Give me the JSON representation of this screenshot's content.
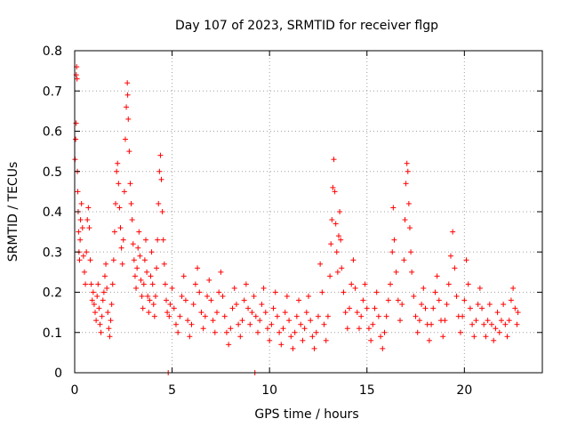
{
  "chart_data": {
    "type": "scatter",
    "title": "Day 107 of 2023, SRMTID for receiver flgp",
    "xlabel": "GPS time / hours",
    "ylabel": "SRMTID / TECUs",
    "xlim": [
      0,
      24
    ],
    "ylim": [
      0,
      0.8
    ],
    "xticks": [
      0,
      5,
      10,
      15,
      20
    ],
    "xtick_labels": [
      "0",
      "5",
      "10",
      "15",
      "20"
    ],
    "yticks": [
      0,
      0.1,
      0.2,
      0.3,
      0.4,
      0.5,
      0.6,
      0.7,
      0.8
    ],
    "ytick_labels": [
      "0",
      "0.1",
      "0.2",
      "0.3",
      "0.4",
      "0.5",
      "0.6",
      "0.7",
      "0.8"
    ],
    "grid": true,
    "marker": "+",
    "color": "#ff0000",
    "series": [
      {
        "name": "flgp",
        "points": [
          [
            0.02,
            0.53
          ],
          [
            0.05,
            0.58
          ],
          [
            0.07,
            0.62
          ],
          [
            0.08,
            0.74
          ],
          [
            0.1,
            0.76
          ],
          [
            0.12,
            0.73
          ],
          [
            0.14,
            0.5
          ],
          [
            0.16,
            0.45
          ],
          [
            0.18,
            0.4
          ],
          [
            0.2,
            0.35
          ],
          [
            0.22,
            0.3
          ],
          [
            0.25,
            0.28
          ],
          [
            0.28,
            0.33
          ],
          [
            0.3,
            0.38
          ],
          [
            0.35,
            0.42
          ],
          [
            0.4,
            0.36
          ],
          [
            0.45,
            0.29
          ],
          [
            0.5,
            0.25
          ],
          [
            0.55,
            0.22
          ],
          [
            0.6,
            0.3
          ],
          [
            0.65,
            0.38
          ],
          [
            0.7,
            0.41
          ],
          [
            0.75,
            0.36
          ],
          [
            0.8,
            0.28
          ],
          [
            0.85,
            0.22
          ],
          [
            0.9,
            0.18
          ],
          [
            0.95,
            0.2
          ],
          [
            1.0,
            0.17
          ],
          [
            1.05,
            0.15
          ],
          [
            1.1,
            0.13
          ],
          [
            1.15,
            0.19
          ],
          [
            1.2,
            0.22
          ],
          [
            1.25,
            0.16
          ],
          [
            1.3,
            0.12
          ],
          [
            1.35,
            0.1
          ],
          [
            1.4,
            0.14
          ],
          [
            1.45,
            0.18
          ],
          [
            1.5,
            0.2
          ],
          [
            1.55,
            0.24
          ],
          [
            1.6,
            0.27
          ],
          [
            1.65,
            0.21
          ],
          [
            1.7,
            0.15
          ],
          [
            1.75,
            0.11
          ],
          [
            1.8,
            0.09
          ],
          [
            1.85,
            0.13
          ],
          [
            1.9,
            0.17
          ],
          [
            1.95,
            0.22
          ],
          [
            2.0,
            0.28
          ],
          [
            2.05,
            0.35
          ],
          [
            2.1,
            0.42
          ],
          [
            2.15,
            0.5
          ],
          [
            2.2,
            0.52
          ],
          [
            2.25,
            0.47
          ],
          [
            2.3,
            0.41
          ],
          [
            2.35,
            0.36
          ],
          [
            2.4,
            0.31
          ],
          [
            2.45,
            0.27
          ],
          [
            2.5,
            0.33
          ],
          [
            2.55,
            0.45
          ],
          [
            2.6,
            0.58
          ],
          [
            2.65,
            0.66
          ],
          [
            2.7,
            0.72
          ],
          [
            2.72,
            0.69
          ],
          [
            2.75,
            0.63
          ],
          [
            2.8,
            0.55
          ],
          [
            2.85,
            0.47
          ],
          [
            2.9,
            0.42
          ],
          [
            2.95,
            0.38
          ],
          [
            3.0,
            0.32
          ],
          [
            3.05,
            0.28
          ],
          [
            3.1,
            0.24
          ],
          [
            3.15,
            0.21
          ],
          [
            3.2,
            0.26
          ],
          [
            3.25,
            0.31
          ],
          [
            3.3,
            0.35
          ],
          [
            3.35,
            0.29
          ],
          [
            3.4,
            0.23
          ],
          [
            3.45,
            0.19
          ],
          [
            3.5,
            0.16
          ],
          [
            3.55,
            0.22
          ],
          [
            3.6,
            0.28
          ],
          [
            3.65,
            0.33
          ],
          [
            3.7,
            0.25
          ],
          [
            3.75,
            0.19
          ],
          [
            3.8,
            0.15
          ],
          [
            3.85,
            0.18
          ],
          [
            3.9,
            0.24
          ],
          [
            3.95,
            0.3
          ],
          [
            4.0,
            0.22
          ],
          [
            4.05,
            0.17
          ],
          [
            4.1,
            0.14
          ],
          [
            4.15,
            0.19
          ],
          [
            4.2,
            0.26
          ],
          [
            4.25,
            0.33
          ],
          [
            4.3,
            0.42
          ],
          [
            4.35,
            0.5
          ],
          [
            4.4,
            0.54
          ],
          [
            4.45,
            0.48
          ],
          [
            4.5,
            0.4
          ],
          [
            4.55,
            0.33
          ],
          [
            4.6,
            0.27
          ],
          [
            4.65,
            0.22
          ],
          [
            4.7,
            0.18
          ],
          [
            4.75,
            0.15
          ],
          [
            4.8,
            0.0
          ],
          [
            4.85,
            0.14
          ],
          [
            4.9,
            0.17
          ],
          [
            5.0,
            0.21
          ],
          [
            5.1,
            0.16
          ],
          [
            5.2,
            0.12
          ],
          [
            5.3,
            0.1
          ],
          [
            5.4,
            0.14
          ],
          [
            5.5,
            0.19
          ],
          [
            5.6,
            0.24
          ],
          [
            5.7,
            0.18
          ],
          [
            5.8,
            0.13
          ],
          [
            5.9,
            0.09
          ],
          [
            6.0,
            0.12
          ],
          [
            6.1,
            0.17
          ],
          [
            6.2,
            0.22
          ],
          [
            6.3,
            0.26
          ],
          [
            6.4,
            0.2
          ],
          [
            6.5,
            0.15
          ],
          [
            6.6,
            0.11
          ],
          [
            6.7,
            0.14
          ],
          [
            6.8,
            0.19
          ],
          [
            6.9,
            0.23
          ],
          [
            7.0,
            0.18
          ],
          [
            7.1,
            0.13
          ],
          [
            7.2,
            0.1
          ],
          [
            7.3,
            0.15
          ],
          [
            7.4,
            0.2
          ],
          [
            7.5,
            0.25
          ],
          [
            7.6,
            0.19
          ],
          [
            7.7,
            0.14
          ],
          [
            7.8,
            0.1
          ],
          [
            7.9,
            0.07
          ],
          [
            8.0,
            0.11
          ],
          [
            8.1,
            0.16
          ],
          [
            8.2,
            0.21
          ],
          [
            8.3,
            0.17
          ],
          [
            8.4,
            0.12
          ],
          [
            8.5,
            0.09
          ],
          [
            8.6,
            0.13
          ],
          [
            8.7,
            0.18
          ],
          [
            8.8,
            0.22
          ],
          [
            8.9,
            0.16
          ],
          [
            9.0,
            0.12
          ],
          [
            9.1,
            0.15
          ],
          [
            9.2,
            0.19
          ],
          [
            9.25,
            0.0
          ],
          [
            9.3,
            0.14
          ],
          [
            9.4,
            0.1
          ],
          [
            9.5,
            0.13
          ],
          [
            9.6,
            0.17
          ],
          [
            9.7,
            0.21
          ],
          [
            9.8,
            0.15
          ],
          [
            9.9,
            0.11
          ],
          [
            10.0,
            0.08
          ],
          [
            10.1,
            0.12
          ],
          [
            10.2,
            0.16
          ],
          [
            10.3,
            0.2
          ],
          [
            10.4,
            0.14
          ],
          [
            10.5,
            0.1
          ],
          [
            10.6,
            0.07
          ],
          [
            10.7,
            0.11
          ],
          [
            10.8,
            0.15
          ],
          [
            10.9,
            0.19
          ],
          [
            11.0,
            0.13
          ],
          [
            11.1,
            0.09
          ],
          [
            11.2,
            0.06
          ],
          [
            11.3,
            0.1
          ],
          [
            11.4,
            0.14
          ],
          [
            11.5,
            0.18
          ],
          [
            11.6,
            0.12
          ],
          [
            11.7,
            0.08
          ],
          [
            11.8,
            0.11
          ],
          [
            11.9,
            0.15
          ],
          [
            12.0,
            0.19
          ],
          [
            12.1,
            0.13
          ],
          [
            12.2,
            0.09
          ],
          [
            12.3,
            0.06
          ],
          [
            12.4,
            0.1
          ],
          [
            12.5,
            0.14
          ],
          [
            12.6,
            0.27
          ],
          [
            12.7,
            0.2
          ],
          [
            12.8,
            0.12
          ],
          [
            12.9,
            0.08
          ],
          [
            13.0,
            0.14
          ],
          [
            13.1,
            0.24
          ],
          [
            13.15,
            0.32
          ],
          [
            13.2,
            0.38
          ],
          [
            13.25,
            0.46
          ],
          [
            13.3,
            0.53
          ],
          [
            13.35,
            0.45
          ],
          [
            13.4,
            0.37
          ],
          [
            13.45,
            0.3
          ],
          [
            13.5,
            0.25
          ],
          [
            13.55,
            0.34
          ],
          [
            13.6,
            0.4
          ],
          [
            13.65,
            0.33
          ],
          [
            13.7,
            0.26
          ],
          [
            13.8,
            0.2
          ],
          [
            13.9,
            0.15
          ],
          [
            14.0,
            0.11
          ],
          [
            14.1,
            0.16
          ],
          [
            14.2,
            0.22
          ],
          [
            14.3,
            0.28
          ],
          [
            14.4,
            0.21
          ],
          [
            14.5,
            0.15
          ],
          [
            14.6,
            0.11
          ],
          [
            14.7,
            0.14
          ],
          [
            14.8,
            0.18
          ],
          [
            14.9,
            0.22
          ],
          [
            15.0,
            0.16
          ],
          [
            15.1,
            0.11
          ],
          [
            15.2,
            0.08
          ],
          [
            15.3,
            0.12
          ],
          [
            15.4,
            0.16
          ],
          [
            15.5,
            0.2
          ],
          [
            15.6,
            0.14
          ],
          [
            15.7,
            0.09
          ],
          [
            15.8,
            0.06
          ],
          [
            15.9,
            0.1
          ],
          [
            16.0,
            0.14
          ],
          [
            16.1,
            0.18
          ],
          [
            16.2,
            0.22
          ],
          [
            16.3,
            0.3
          ],
          [
            16.35,
            0.41
          ],
          [
            16.4,
            0.33
          ],
          [
            16.5,
            0.25
          ],
          [
            16.6,
            0.18
          ],
          [
            16.7,
            0.13
          ],
          [
            16.8,
            0.17
          ],
          [
            16.9,
            0.28
          ],
          [
            16.95,
            0.38
          ],
          [
            17.0,
            0.47
          ],
          [
            17.05,
            0.52
          ],
          [
            17.1,
            0.5
          ],
          [
            17.15,
            0.42
          ],
          [
            17.2,
            0.36
          ],
          [
            17.25,
            0.3
          ],
          [
            17.3,
            0.25
          ],
          [
            17.4,
            0.19
          ],
          [
            17.5,
            0.14
          ],
          [
            17.6,
            0.1
          ],
          [
            17.7,
            0.13
          ],
          [
            17.8,
            0.17
          ],
          [
            17.9,
            0.21
          ],
          [
            18.0,
            0.16
          ],
          [
            18.1,
            0.12
          ],
          [
            18.2,
            0.08
          ],
          [
            18.3,
            0.12
          ],
          [
            18.4,
            0.16
          ],
          [
            18.5,
            0.2
          ],
          [
            18.6,
            0.24
          ],
          [
            18.7,
            0.18
          ],
          [
            18.8,
            0.13
          ],
          [
            18.9,
            0.09
          ],
          [
            19.0,
            0.13
          ],
          [
            19.1,
            0.17
          ],
          [
            19.2,
            0.22
          ],
          [
            19.3,
            0.29
          ],
          [
            19.4,
            0.35
          ],
          [
            19.5,
            0.26
          ],
          [
            19.6,
            0.19
          ],
          [
            19.7,
            0.14
          ],
          [
            19.8,
            0.1
          ],
          [
            19.9,
            0.14
          ],
          [
            20.0,
            0.18
          ],
          [
            20.1,
            0.28
          ],
          [
            20.2,
            0.22
          ],
          [
            20.3,
            0.16
          ],
          [
            20.4,
            0.12
          ],
          [
            20.5,
            0.09
          ],
          [
            20.6,
            0.13
          ],
          [
            20.7,
            0.17
          ],
          [
            20.8,
            0.21
          ],
          [
            20.9,
            0.16
          ],
          [
            21.0,
            0.12
          ],
          [
            21.1,
            0.09
          ],
          [
            21.2,
            0.13
          ],
          [
            21.3,
            0.17
          ],
          [
            21.4,
            0.12
          ],
          [
            21.5,
            0.08
          ],
          [
            21.6,
            0.11
          ],
          [
            21.7,
            0.15
          ],
          [
            21.8,
            0.1
          ],
          [
            21.9,
            0.13
          ],
          [
            22.0,
            0.17
          ],
          [
            22.1,
            0.12
          ],
          [
            22.2,
            0.09
          ],
          [
            22.3,
            0.13
          ],
          [
            22.4,
            0.18
          ],
          [
            22.5,
            0.21
          ],
          [
            22.6,
            0.16
          ],
          [
            22.7,
            0.12
          ],
          [
            22.75,
            0.15
          ]
        ]
      }
    ]
  }
}
